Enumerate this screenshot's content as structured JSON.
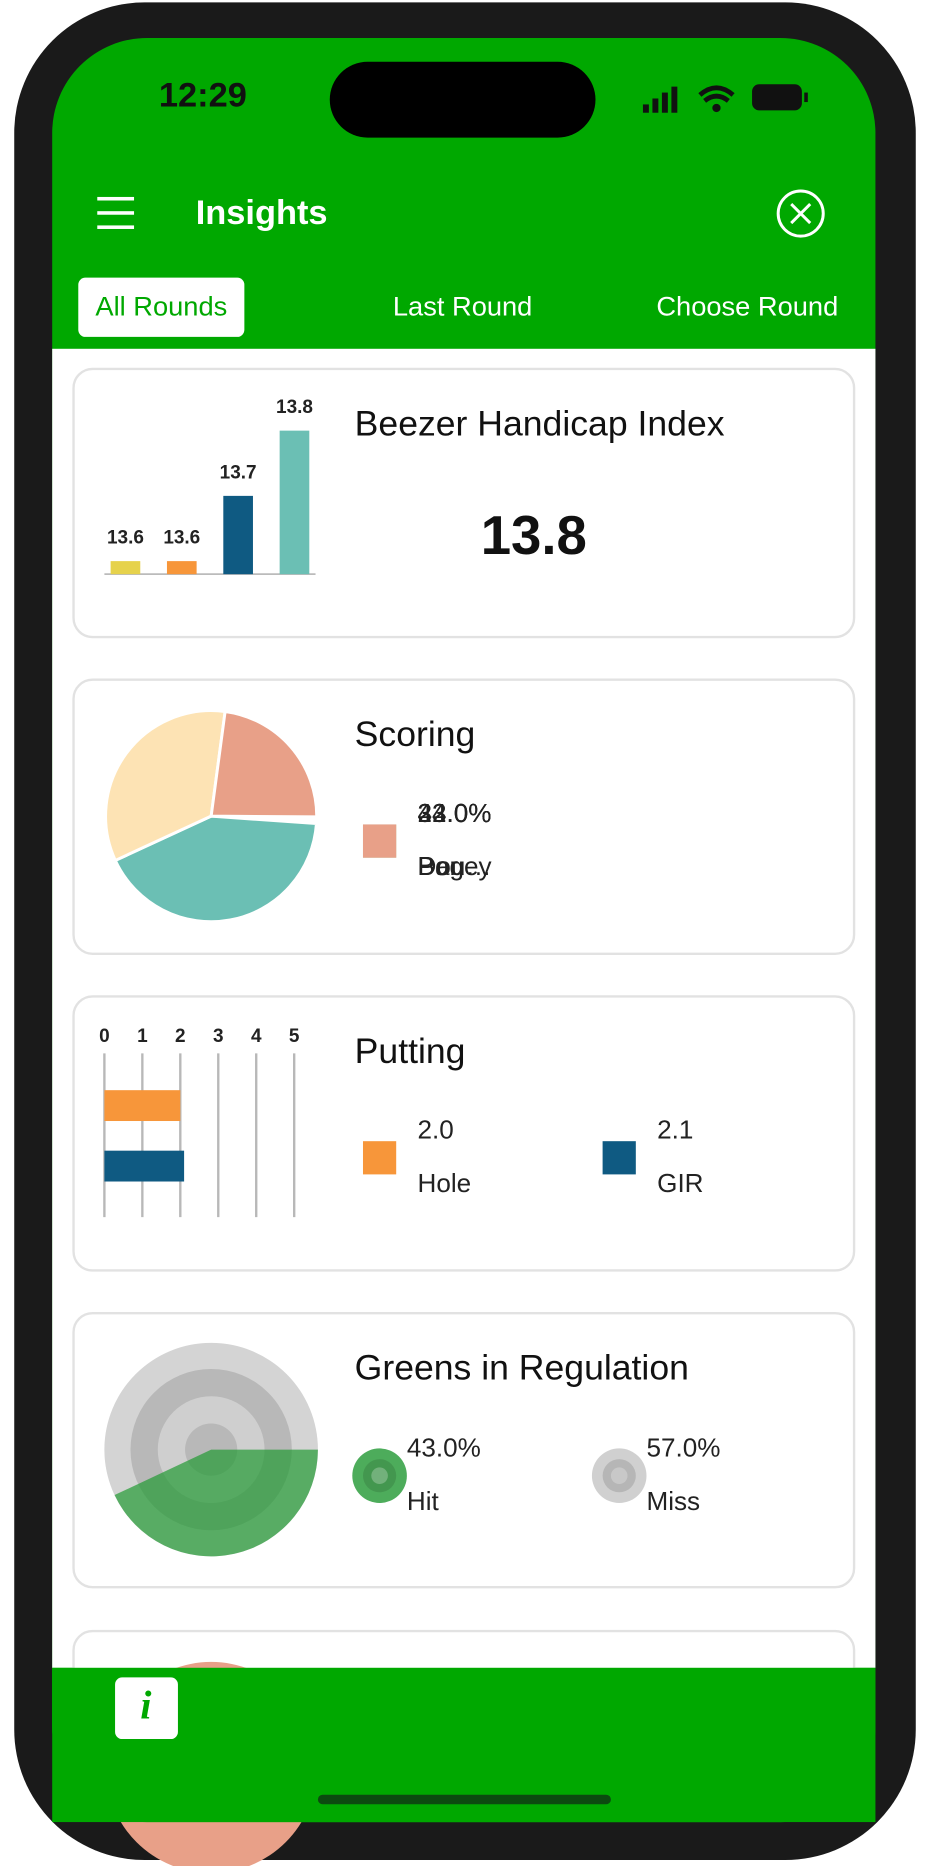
{
  "status": {
    "time": "12:29"
  },
  "header": {
    "title": "Insights"
  },
  "tabs": [
    "All Rounds",
    "Last Round",
    "Choose Round"
  ],
  "cards": [
    {
      "title": "Beezer Handicap Index",
      "value": "13.8",
      "chart": {
        "type": "bar",
        "values": [
          13.6,
          13.6,
          13.7,
          13.8
        ],
        "colors": [
          "#e6d24c",
          "#f7963a",
          "#0f5a82",
          "#6bbfb4"
        ],
        "ylim": [
          13.58,
          13.8
        ]
      }
    },
    {
      "title": "Scoring",
      "chart": {
        "type": "pie",
        "series": [
          {
            "name": "Par",
            "color": "#6bbfb4",
            "value": 42,
            "value_label": "42.0%"
          },
          {
            "name": "Bogey",
            "color": "#fde3b4",
            "value": 34,
            "value_label": "34.0%"
          },
          {
            "name": "Dou…",
            "color": "#e8a088",
            "value": 23,
            "value_label": "23.0%"
          }
        ]
      }
    },
    {
      "title": "Putting",
      "chart": {
        "type": "barh",
        "xlim": [
          0,
          5
        ],
        "xticks": [
          0,
          1,
          2,
          3,
          4,
          5
        ],
        "series": [
          {
            "name": "Hole",
            "color": "#f7963a",
            "value": 2,
            "value_label": "2.0"
          },
          {
            "name": "GIR",
            "color": "#0f5a82",
            "value": 2.1
          }
        ]
      }
    },
    {
      "title": "Greens in Regulation",
      "chart": {
        "type": "target",
        "series": [
          {
            "name": "Hit",
            "color": "#2e9e3e",
            "value": 43,
            "value_label": "43.0%"
          },
          {
            "name": "Miss",
            "color": "#c8c8c8",
            "value": 57,
            "value_label": "57.0%"
          }
        ]
      }
    }
  ],
  "footer": {
    "info_icon": "i"
  }
}
